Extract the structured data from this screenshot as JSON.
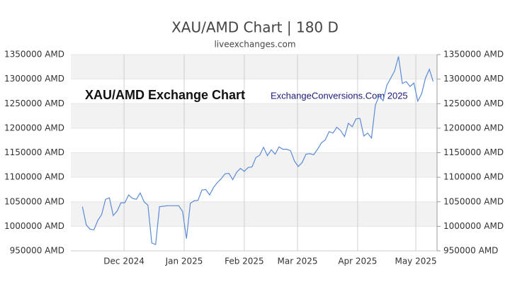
{
  "chart_data": {
    "type": "line",
    "title": "XAU/AMD Chart | 180 D",
    "subtitle": "liveexchanges.com",
    "annotations": [
      "XAU/AMD Exchange Chart",
      "ExchangeConversions.Com 2025"
    ],
    "color": "#5b8bd6",
    "values": [
      1040000,
      1003000,
      994000,
      993000,
      1012000,
      1024000,
      1055000,
      1058000,
      1022000,
      1031000,
      1048000,
      1048000,
      1064000,
      1057000,
      1055000,
      1068000,
      1050000,
      1043000,
      966000,
      963000,
      1040000,
      1041000,
      1042000,
      1042000,
      1042000,
      1042000,
      1030000,
      975000,
      1047000,
      1052000,
      1053000,
      1074000,
      1075000,
      1064000,
      1079000,
      1089000,
      1097000,
      1107000,
      1108000,
      1095000,
      1110000,
      1118000,
      1112000,
      1120000,
      1121000,
      1140000,
      1145000,
      1161000,
      1144000,
      1156000,
      1147000,
      1162000,
      1157000,
      1157000,
      1154000,
      1133000,
      1122000,
      1130000,
      1147000,
      1148000,
      1146000,
      1157000,
      1170000,
      1176000,
      1193000,
      1190000,
      1202000,
      1195000,
      1183000,
      1210000,
      1203000,
      1219000,
      1220000,
      1184000,
      1190000,
      1180000,
      1247000,
      1266000,
      1256000,
      1288000,
      1302000,
      1317000,
      1346000,
      1291000,
      1295000,
      1285000,
      1292000,
      1255000,
      1270000,
      1302000,
      1320000,
      1295000
    ],
    "xlim": [
      -3,
      92
    ],
    "xticks": [
      {
        "value": 10.8,
        "label": "Dec 2024"
      },
      {
        "value": 26.4,
        "label": "Jan 2025"
      },
      {
        "value": 42,
        "label": "Feb 2025"
      },
      {
        "value": 55.8,
        "label": "Mar 2025"
      },
      {
        "value": 71.4,
        "label": "Apr 2025"
      },
      {
        "value": 86.5,
        "label": "May 2025"
      }
    ],
    "ylim": [
      950000,
      1350000
    ],
    "yticks": [
      {
        "value": 950000,
        "label": "950000 AMD"
      },
      {
        "value": 1000000,
        "label": "1000000 AMD"
      },
      {
        "value": 1050000,
        "label": "1050000 AMD"
      },
      {
        "value": 1100000,
        "label": "1100000 AMD"
      },
      {
        "value": 1150000,
        "label": "1150000 AMD"
      },
      {
        "value": 1200000,
        "label": "1200000 AMD"
      },
      {
        "value": 1250000,
        "label": "1250000 AMD"
      },
      {
        "value": 1300000,
        "label": "1300000 AMD"
      },
      {
        "value": 1350000,
        "label": "1350000 AMD"
      }
    ],
    "grid": true
  }
}
